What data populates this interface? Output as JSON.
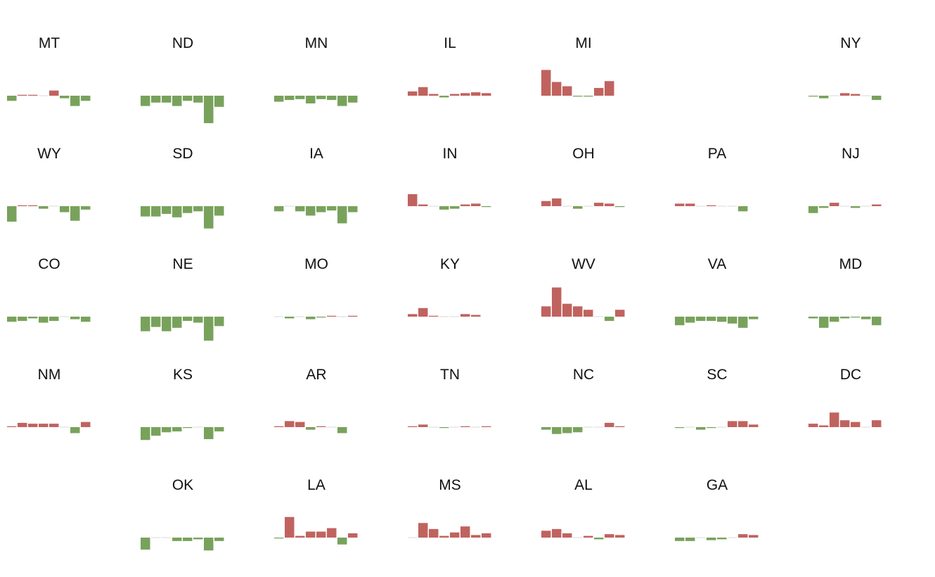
{
  "chart_data": {
    "type": "bar",
    "colors": {
      "positive": "#c0635f",
      "negative": "#78a25c",
      "zero": "#d9d9d9"
    },
    "states": [
      {
        "abbr": "MT",
        "row": 0,
        "col": 0,
        "values": [
          -6,
          1,
          1,
          0,
          6,
          -3,
          -12,
          -6
        ]
      },
      {
        "abbr": "ND",
        "row": 0,
        "col": 1,
        "values": [
          -12,
          -8,
          -8,
          -12,
          -6,
          -8,
          -32,
          -13
        ]
      },
      {
        "abbr": "MN",
        "row": 0,
        "col": 2,
        "values": [
          -7,
          -5,
          -4,
          -9,
          -4,
          -5,
          -12,
          -8
        ]
      },
      {
        "abbr": "IL",
        "row": 0,
        "col": 3,
        "values": [
          5,
          10,
          2,
          -2,
          2,
          3,
          4,
          3
        ]
      },
      {
        "abbr": "MI",
        "row": 0,
        "col": 4,
        "values": [
          30,
          16,
          11,
          -1,
          -1,
          9,
          17
        ]
      },
      {
        "abbr": "NY",
        "row": 0,
        "col": 6,
        "values": [
          -1,
          -3,
          0,
          3,
          2,
          0,
          -5
        ]
      },
      {
        "abbr": "WY",
        "row": 1,
        "col": 0,
        "values": [
          -18,
          1,
          1,
          -3,
          0,
          -7,
          -17,
          -4
        ]
      },
      {
        "abbr": "SD",
        "row": 1,
        "col": 1,
        "values": [
          -12,
          -12,
          -9,
          -13,
          -8,
          -6,
          -26,
          -11
        ]
      },
      {
        "abbr": "IA",
        "row": 1,
        "col": 2,
        "values": [
          -6,
          0,
          -6,
          -11,
          -7,
          -5,
          -20,
          -7
        ]
      },
      {
        "abbr": "IN",
        "row": 1,
        "col": 3,
        "values": [
          14,
          2,
          0,
          -4,
          -3,
          2,
          3,
          -1
        ]
      },
      {
        "abbr": "OH",
        "row": 1,
        "col": 4,
        "values": [
          6,
          9,
          0,
          -3,
          0,
          4,
          3,
          -1
        ]
      },
      {
        "abbr": "PA",
        "row": 1,
        "col": 5,
        "values": [
          3,
          3,
          0,
          1,
          0,
          0,
          -6
        ]
      },
      {
        "abbr": "NJ",
        "row": 1,
        "col": 6,
        "values": [
          -8,
          -2,
          4,
          0,
          -2,
          0,
          2
        ]
      },
      {
        "abbr": "CO",
        "row": 2,
        "col": 0,
        "values": [
          -6,
          -5,
          -2,
          -7,
          -5,
          0,
          -3,
          -6
        ]
      },
      {
        "abbr": "NE",
        "row": 2,
        "col": 1,
        "values": [
          -17,
          -12,
          -17,
          -13,
          -5,
          -7,
          -28,
          -11
        ]
      },
      {
        "abbr": "MO",
        "row": 2,
        "col": 2,
        "values": [
          0,
          -2,
          0,
          -3,
          -1,
          1,
          0,
          1
        ]
      },
      {
        "abbr": "KY",
        "row": 2,
        "col": 3,
        "values": [
          3,
          10,
          1,
          0,
          0,
          3,
          2
        ]
      },
      {
        "abbr": "WV",
        "row": 2,
        "col": 4,
        "values": [
          12,
          34,
          15,
          12,
          8,
          0,
          -5,
          8
        ]
      },
      {
        "abbr": "VA",
        "row": 2,
        "col": 5,
        "values": [
          -10,
          -7,
          -5,
          -5,
          -6,
          -8,
          -13,
          -3
        ]
      },
      {
        "abbr": "MD",
        "row": 2,
        "col": 6,
        "values": [
          -2,
          -13,
          -6,
          -2,
          -1,
          -3,
          -10
        ]
      },
      {
        "abbr": "NM",
        "row": 3,
        "col": 0,
        "values": [
          1,
          5,
          4,
          4,
          4,
          0,
          -7,
          6
        ]
      },
      {
        "abbr": "KS",
        "row": 3,
        "col": 1,
        "values": [
          -15,
          -10,
          -6,
          -5,
          -1,
          0,
          -14,
          -5
        ]
      },
      {
        "abbr": "AR",
        "row": 3,
        "col": 2,
        "values": [
          1,
          7,
          6,
          -3,
          1,
          0,
          -7
        ]
      },
      {
        "abbr": "TN",
        "row": 3,
        "col": 3,
        "values": [
          1,
          3,
          0,
          -1,
          0,
          1,
          0,
          1
        ]
      },
      {
        "abbr": "NC",
        "row": 3,
        "col": 4,
        "values": [
          -3,
          -8,
          -7,
          -6,
          0,
          0,
          5,
          1
        ]
      },
      {
        "abbr": "SC",
        "row": 3,
        "col": 5,
        "values": [
          -1,
          0,
          -3,
          -1,
          0,
          7,
          7,
          3
        ]
      },
      {
        "abbr": "DC",
        "row": 3,
        "col": 6,
        "values": [
          4,
          2,
          17,
          8,
          6,
          0,
          8
        ]
      },
      {
        "abbr": "OK",
        "row": 4,
        "col": 1,
        "values": [
          -14,
          0,
          0,
          -4,
          -4,
          -2,
          -15,
          -4
        ]
      },
      {
        "abbr": "LA",
        "row": 4,
        "col": 2,
        "values": [
          -1,
          24,
          2,
          7,
          7,
          11,
          -8,
          5
        ]
      },
      {
        "abbr": "MS",
        "row": 4,
        "col": 3,
        "values": [
          0,
          17,
          10,
          2,
          6,
          13,
          3,
          5
        ]
      },
      {
        "abbr": "AL",
        "row": 4,
        "col": 4,
        "values": [
          8,
          10,
          5,
          0,
          2,
          -2,
          4,
          3
        ]
      },
      {
        "abbr": "GA",
        "row": 4,
        "col": 5,
        "values": [
          -4,
          -4,
          0,
          -3,
          -2,
          0,
          4,
          3
        ]
      }
    ]
  }
}
